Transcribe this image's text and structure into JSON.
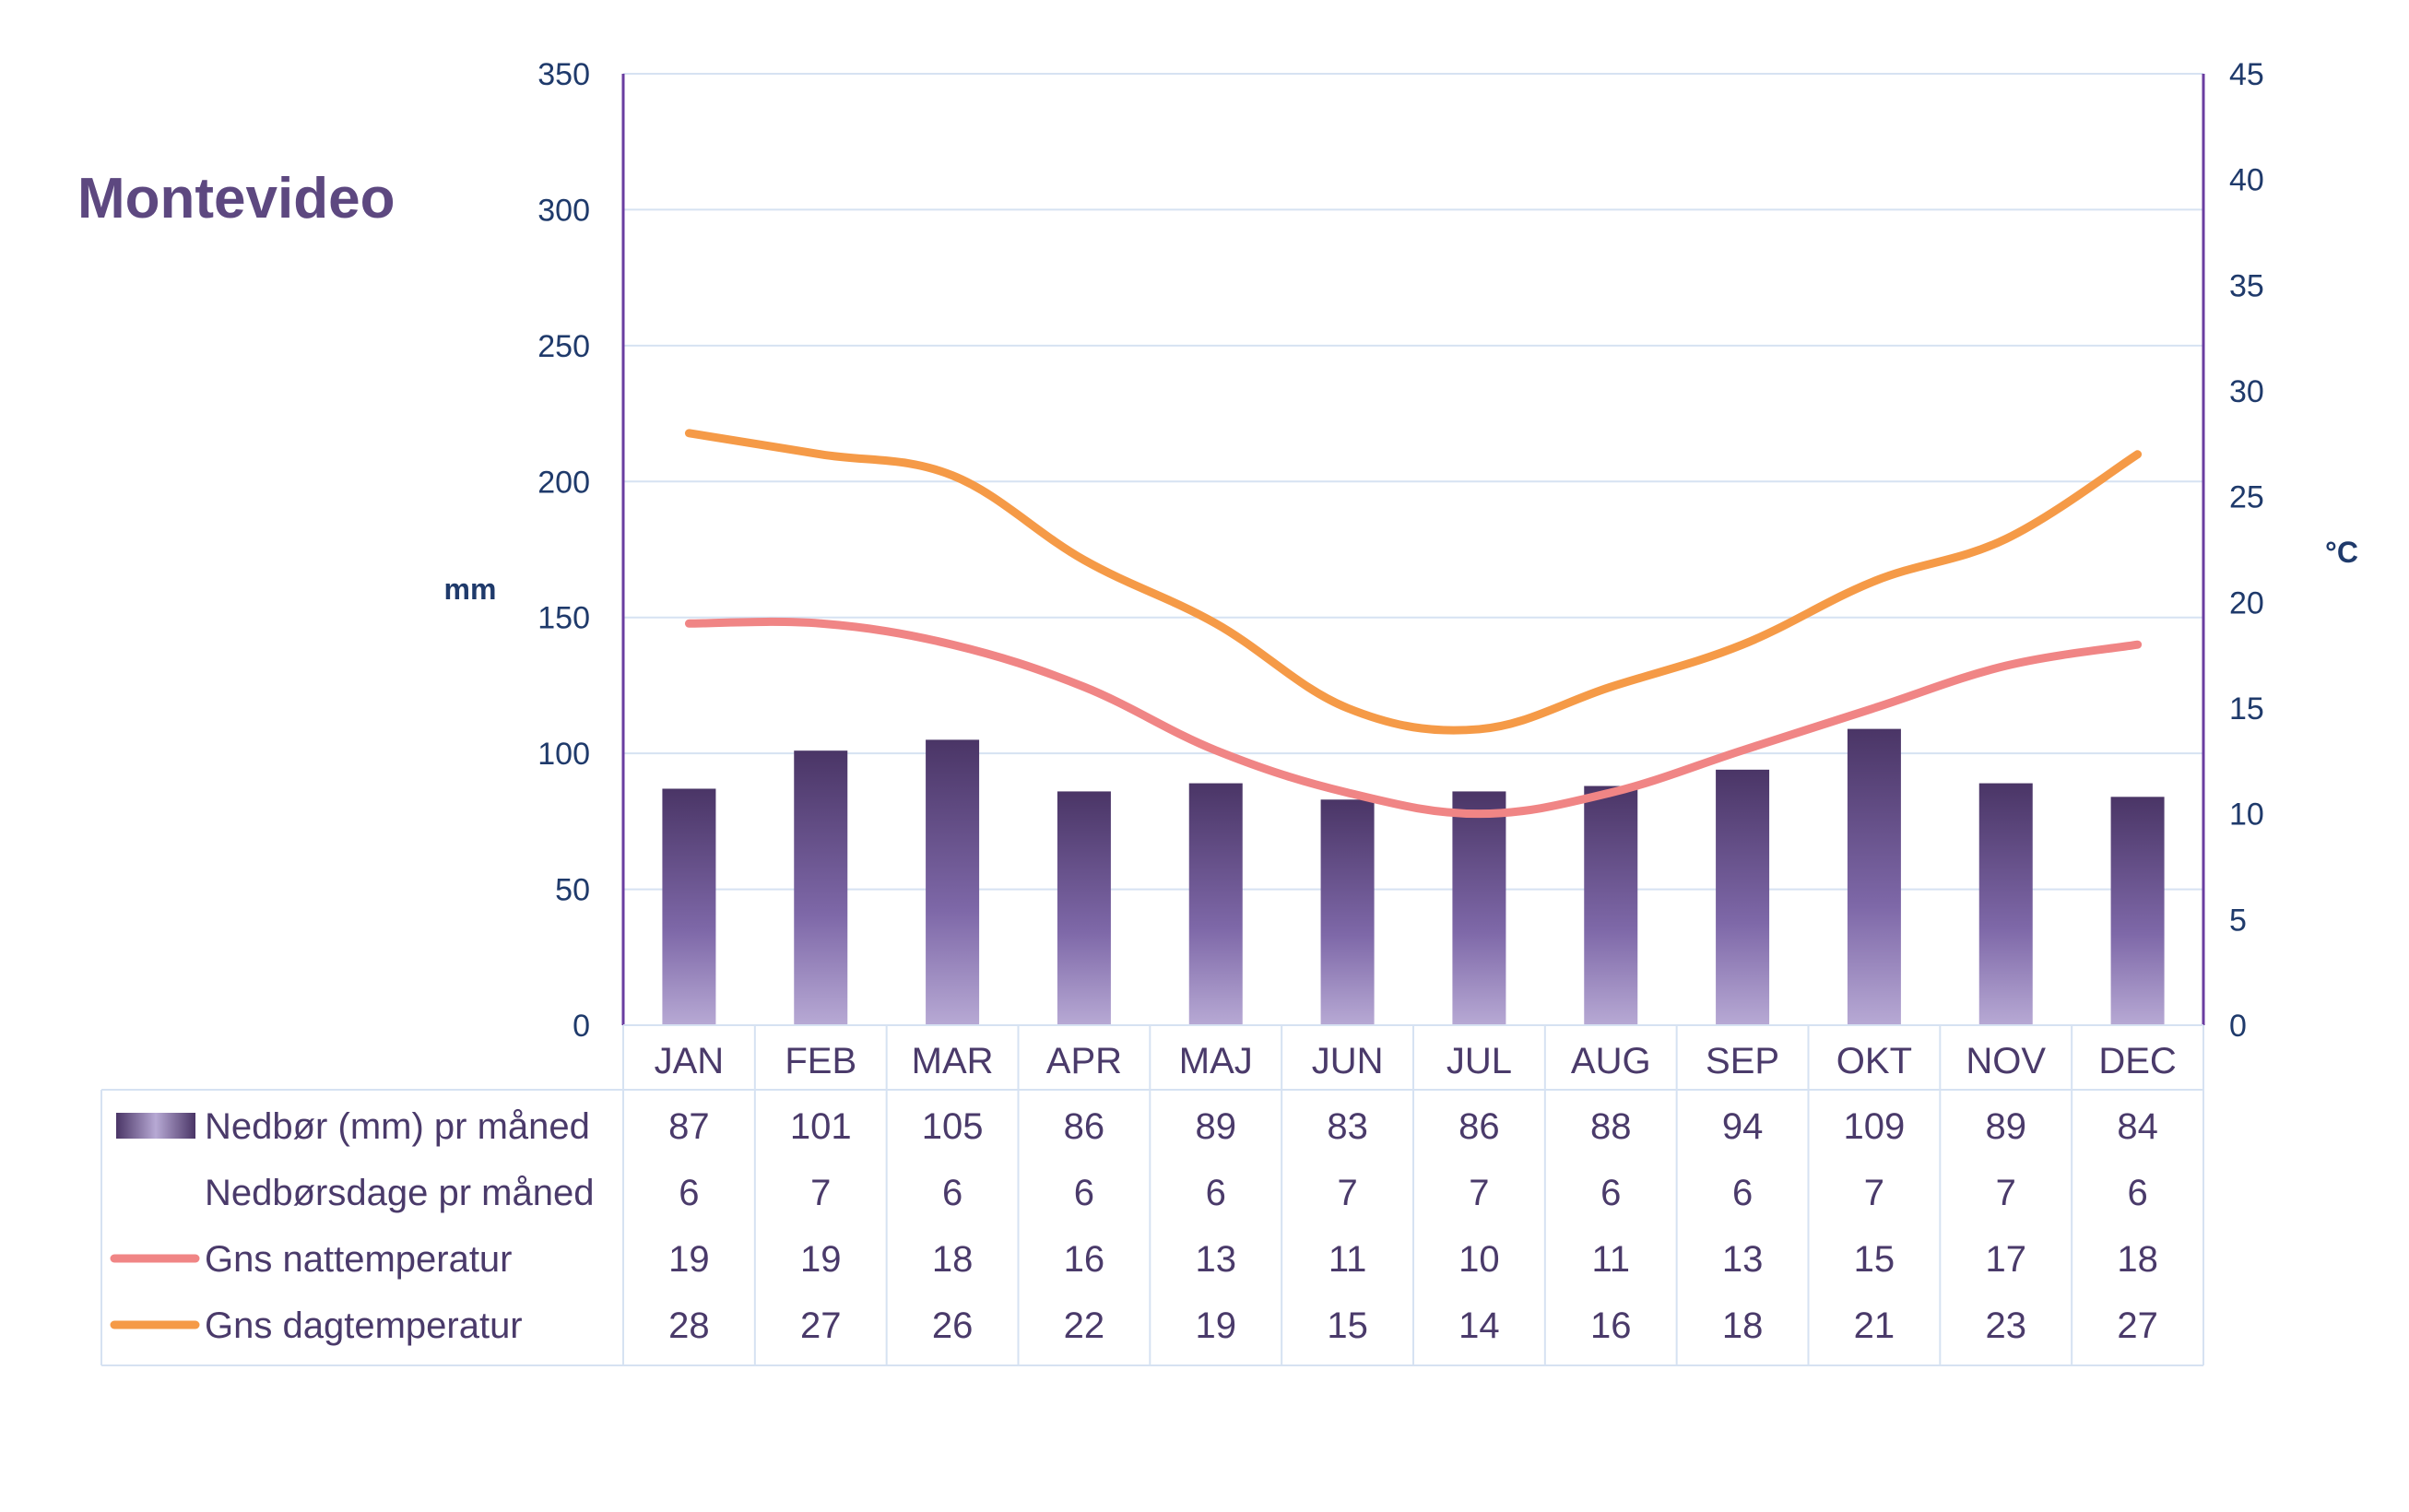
{
  "title": "Montevideo",
  "chart_data": {
    "type": "bar",
    "categories": [
      "JAN",
      "FEB",
      "MAR",
      "APR",
      "MAJ",
      "JUN",
      "JUL",
      "AUG",
      "SEP",
      "OKT",
      "NOV",
      "DEC"
    ],
    "ylabel_left": "mm",
    "ylabel_right": "°C",
    "ylim_left": [
      0,
      350
    ],
    "yticks_left": [
      0,
      50,
      100,
      150,
      200,
      250,
      300,
      350
    ],
    "ylim_right": [
      0,
      45
    ],
    "yticks_right": [
      0,
      5,
      10,
      15,
      20,
      25,
      30,
      35,
      40,
      45
    ],
    "grid": true,
    "series": [
      {
        "name": "Nedbør (mm) pr måned",
        "type": "bar",
        "axis": "left",
        "color": "#4f3c70",
        "values": [
          87,
          101,
          105,
          86,
          89,
          83,
          86,
          88,
          94,
          109,
          89,
          84
        ]
      },
      {
        "name": "Nedbørsdage pr måned",
        "type": "table",
        "values": [
          6,
          7,
          6,
          6,
          6,
          7,
          7,
          6,
          6,
          7,
          7,
          6
        ]
      },
      {
        "name": "Gns nattemperatur",
        "type": "line",
        "axis": "right",
        "color": "#f08585",
        "values": [
          19,
          19,
          18,
          16,
          13,
          11,
          10,
          11,
          13,
          15,
          17,
          18
        ]
      },
      {
        "name": "Gns dagtemperatur",
        "type": "line",
        "axis": "right",
        "color": "#f59a47",
        "values": [
          28,
          27,
          26,
          22,
          19,
          15,
          14,
          16,
          18,
          21,
          23,
          27
        ]
      }
    ]
  }
}
